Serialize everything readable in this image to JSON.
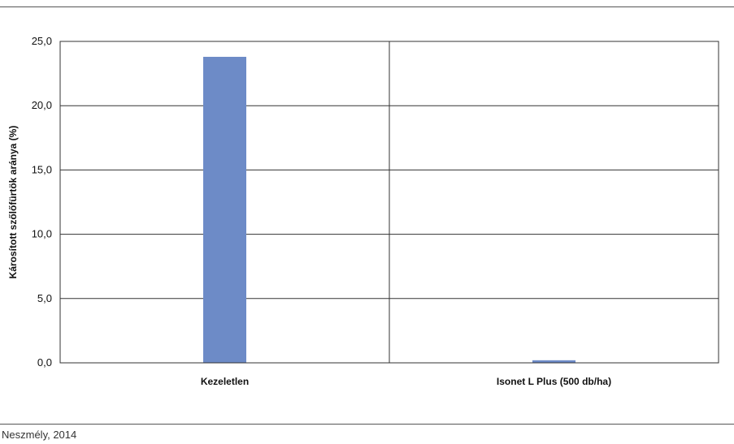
{
  "chart_data": {
    "type": "bar",
    "categories": [
      "Kezeletlen",
      "Isonet L Plus (500 db/ha)"
    ],
    "series": [
      {
        "values": [
          23.8,
          0.2
        ]
      }
    ],
    "ylabel": "Károsított szőlőfürtök aránya (%)",
    "xlabel": "",
    "ylim": [
      0,
      25
    ],
    "yticks": [
      "0,0",
      "5,0",
      "10,0",
      "15,0",
      "20,0",
      "25,0"
    ],
    "grid": true,
    "legend": "none",
    "bar_color": "#6d8bc7"
  },
  "caption": "Neszmély, 2014"
}
